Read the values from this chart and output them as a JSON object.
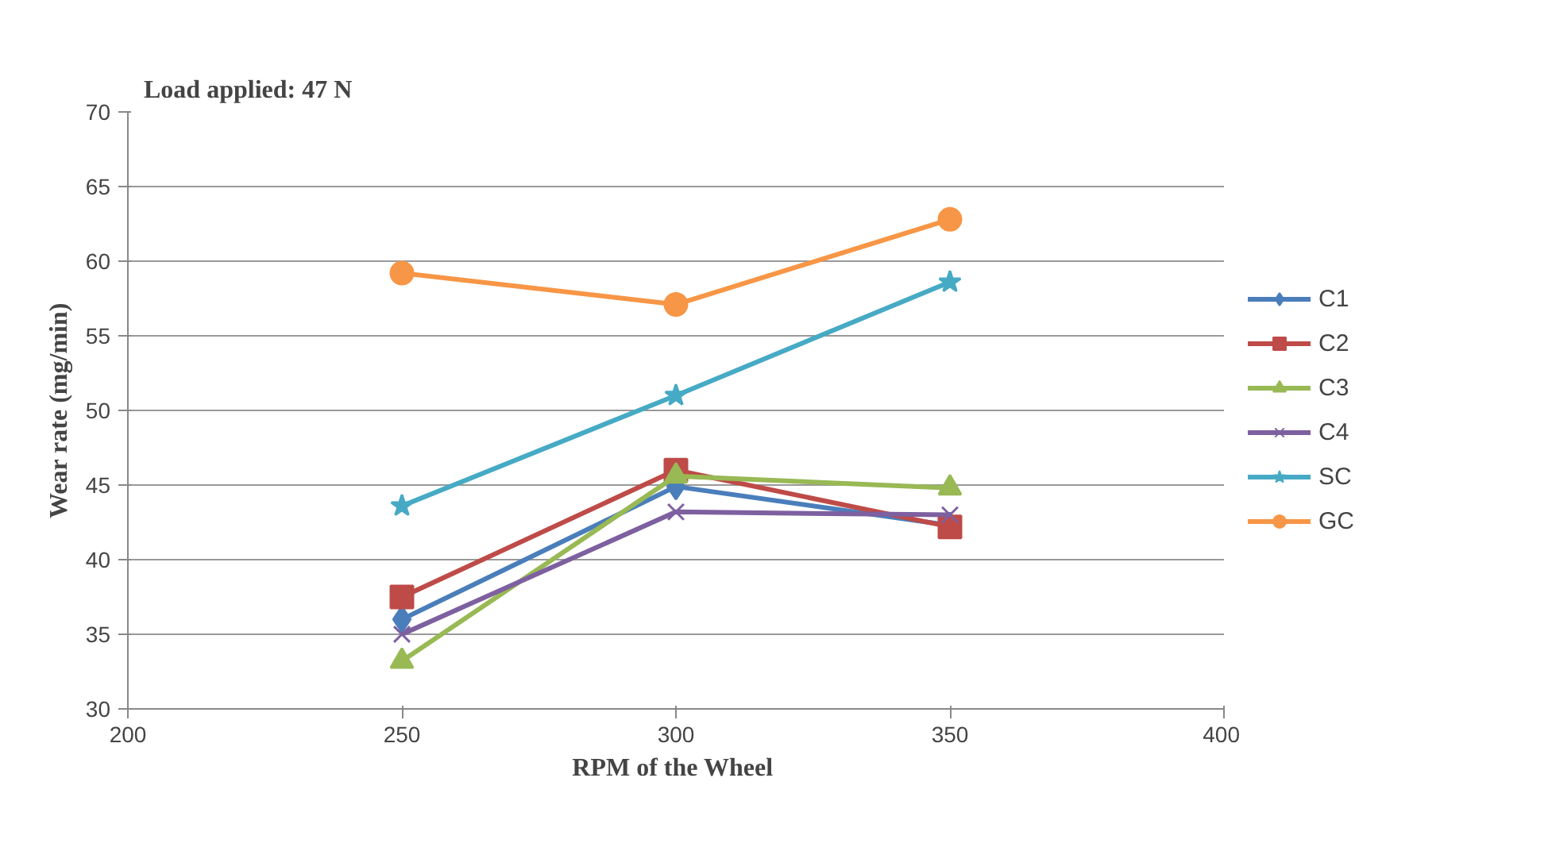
{
  "chart_data": {
    "type": "line",
    "xlabel": "RPM  of the Wheel",
    "ylabel": "Wear rate (mg/min)",
    "annotations": [
      "Load applied: 47 N"
    ],
    "x": [
      250,
      300,
      350
    ],
    "xlim": [
      200,
      400
    ],
    "xticks": [
      200,
      250,
      300,
      350,
      400
    ],
    "ylim": [
      30,
      70
    ],
    "yticks": [
      30,
      35,
      40,
      45,
      50,
      55,
      60,
      65,
      70
    ],
    "grid": "y",
    "legend": "right",
    "series": [
      {
        "name": "C1",
        "color": "#4a7ebb",
        "marker": "diamond",
        "values": [
          36.0,
          44.9,
          42.3
        ]
      },
      {
        "name": "C2",
        "color": "#be4b48",
        "marker": "square",
        "values": [
          37.5,
          46.0,
          42.2
        ]
      },
      {
        "name": "C3",
        "color": "#98b954",
        "marker": "triangle",
        "values": [
          33.2,
          45.6,
          44.8
        ]
      },
      {
        "name": "C4",
        "color": "#7d60a0",
        "marker": "cross",
        "values": [
          35.0,
          43.2,
          43.0
        ]
      },
      {
        "name": "SC",
        "color": "#46aac5",
        "marker": "star",
        "values": [
          43.6,
          51.0,
          58.6
        ]
      },
      {
        "name": "GC",
        "color": "#f79646",
        "marker": "circle",
        "values": [
          59.2,
          57.1,
          62.8
        ]
      }
    ]
  }
}
